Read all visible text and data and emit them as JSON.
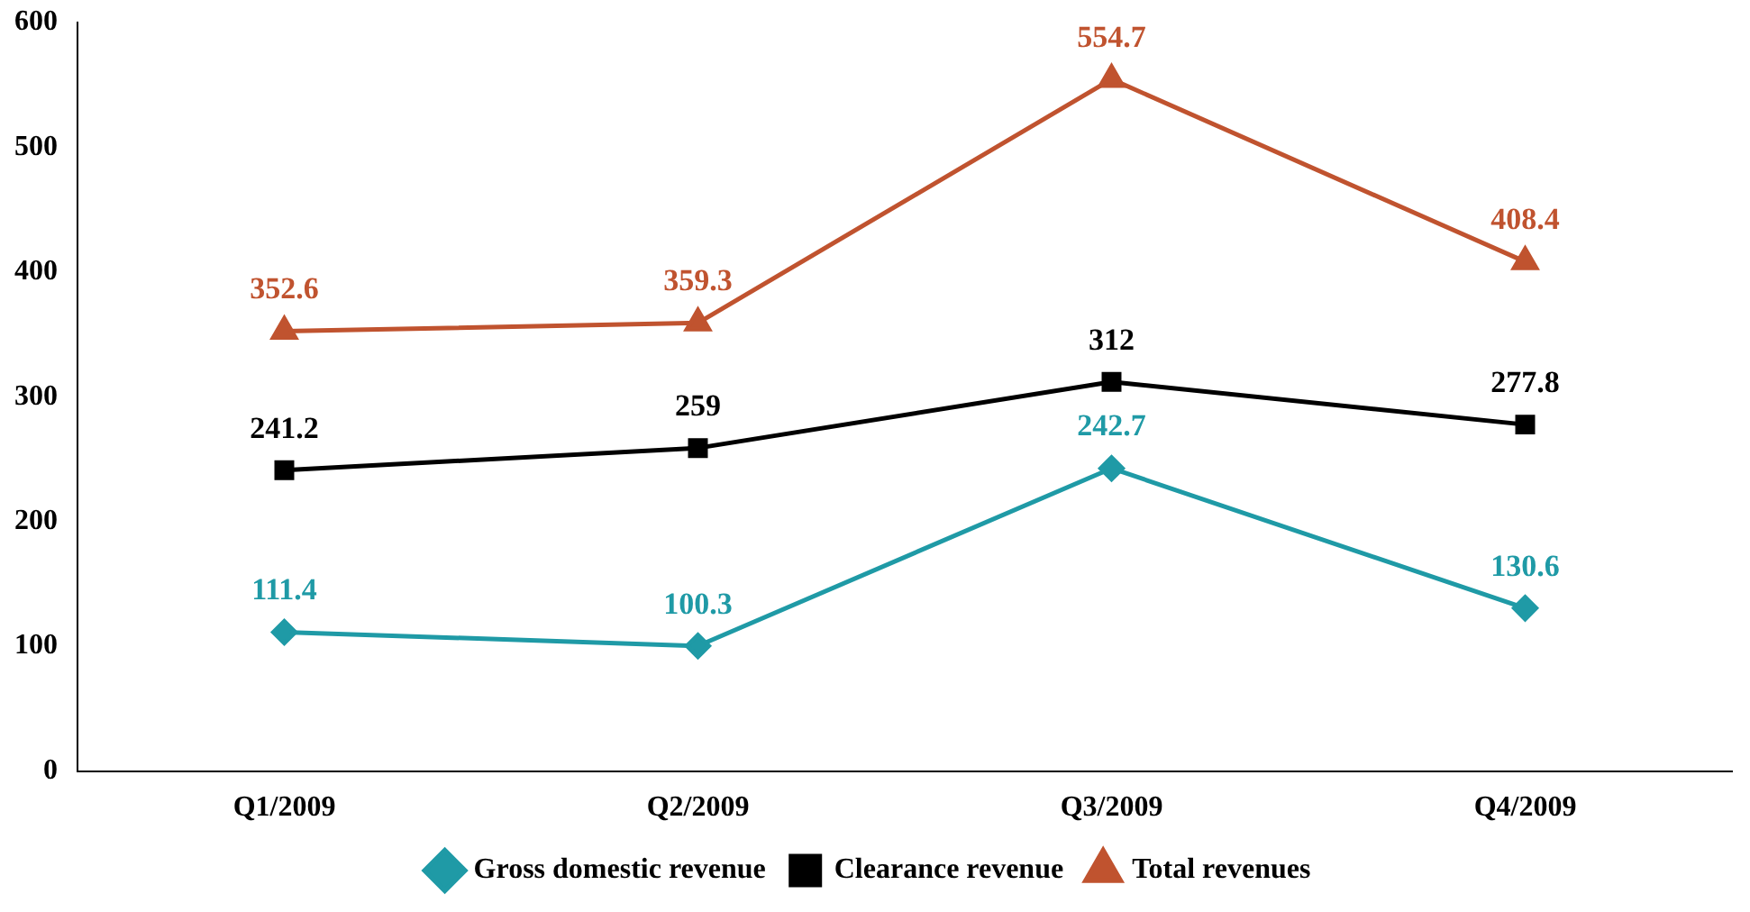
{
  "chart_data": {
    "type": "line",
    "categories": [
      "Q1/2009",
      "Q2/2009",
      "Q3/2009",
      "Q4/2009"
    ],
    "series": [
      {
        "name": "Gross domestic revenue",
        "color": "#1f9aa6",
        "marker": "diamond",
        "values": [
          111.4,
          100.3,
          242.7,
          130.6
        ]
      },
      {
        "name": "Clearance revenue",
        "color": "#000000",
        "marker": "square",
        "values": [
          241.2,
          259,
          312,
          277.8
        ]
      },
      {
        "name": "Total revenues",
        "color": "#c0532f",
        "marker": "triangle",
        "values": [
          352.6,
          359.3,
          554.7,
          408.4
        ]
      }
    ],
    "ylim": [
      0,
      600
    ],
    "yticks": [
      0,
      100,
      200,
      300,
      400,
      500,
      600
    ],
    "grid": false,
    "legend": "bottom",
    "data_labels": true,
    "line_style": "solid"
  }
}
